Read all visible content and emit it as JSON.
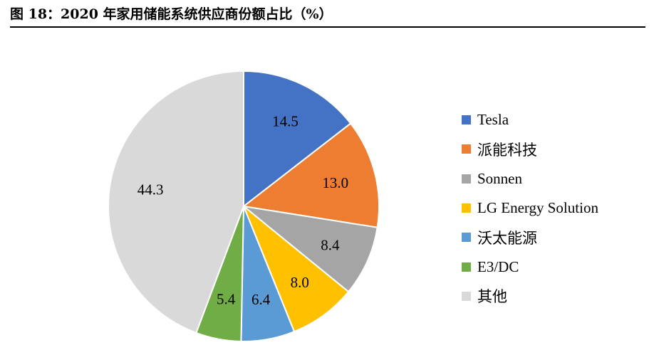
{
  "figure": {
    "title": "图 18：2020 年家用储能系统供应商份额占比（%）"
  },
  "chart_data": {
    "type": "pie",
    "title": "图 18：2020 年家用储能系统供应商份额占比（%）",
    "slices": [
      {
        "label": "Tesla",
        "value": 14.5,
        "value_label": "14.5",
        "color": "#4472C4"
      },
      {
        "label": "派能科技",
        "value": 13.0,
        "value_label": "13.0",
        "color": "#ED7D31"
      },
      {
        "label": "Sonnen",
        "value": 8.4,
        "value_label": "8.4",
        "color": "#A5A5A5"
      },
      {
        "label": "LG Energy Solution",
        "value": 8.0,
        "value_label": "8.0",
        "color": "#FFC000"
      },
      {
        "label": "沃太能源",
        "value": 6.4,
        "value_label": "6.4",
        "color": "#5B9BD5"
      },
      {
        "label": "E3/DC",
        "value": 5.4,
        "value_label": "5.4",
        "color": "#70AD47"
      },
      {
        "label": "其他",
        "value": 44.3,
        "value_label": "44.3",
        "color": "#D9D9D9"
      }
    ],
    "start_angle": "12 o'clock",
    "direction": "clockwise",
    "legend_position": "right"
  }
}
